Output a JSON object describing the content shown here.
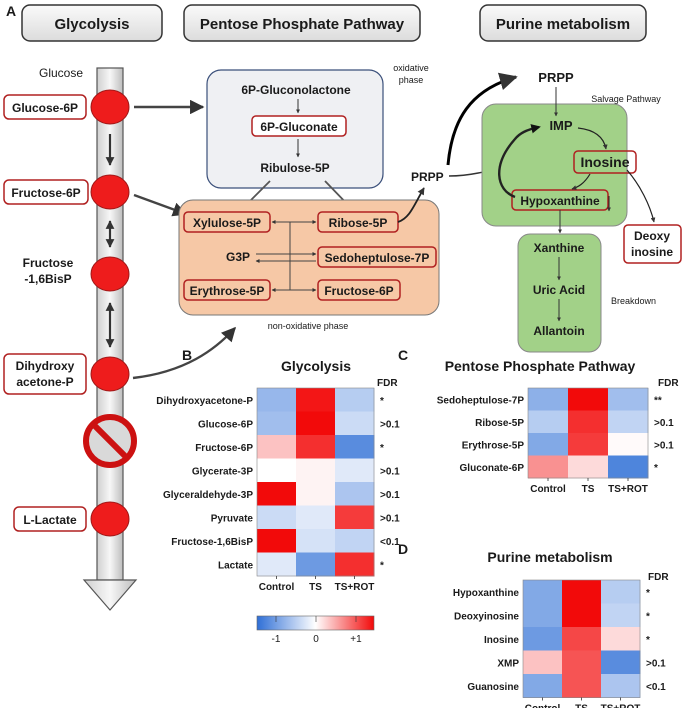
{
  "panel_labels": {
    "a": "A",
    "b": "B",
    "c": "C",
    "d": "D"
  },
  "headers": {
    "glycolysis": "Glycolysis",
    "ppp": "Pentose Phosphate Pathway",
    "purine": "Purine metabolism"
  },
  "pathway": {
    "glucose": "Glucose",
    "glucose6p": "Glucose-6P",
    "fructose6p": "Fructose-6P",
    "fructose16_line1": "Fructose",
    "fructose16_line2": "-1,6BisP",
    "dhap_line1": "Dihydroxy",
    "dhap_line2": "acetone-P",
    "lactate": "L-Lactate"
  },
  "ppp": {
    "oxidative_line1": "oxidative",
    "oxidative_line2": "phase",
    "gluconolactone": "6P-Gluconolactone",
    "gluconate": "6P-Gluconate",
    "ribulose": "Ribulose-5P",
    "xylulose": "Xylulose-5P",
    "ribose": "Ribose-5P",
    "g3p": "G3P",
    "sedoheptulose": "Sedoheptulose-7P",
    "erythrose": "Erythrose-5P",
    "fructose6p": "Fructose-6P",
    "nonoxidative": "non-oxidative phase"
  },
  "purine": {
    "prpp_top": "PRPP",
    "prpp_side": "PRPP",
    "salvage": "Salvage Pathway",
    "imp": "IMP",
    "inosine": "Inosine",
    "hypoxanthine": "Hypoxanthine",
    "deoxy_line1": "Deoxy",
    "deoxy_line2": "inosine",
    "xanthine": "Xanthine",
    "uric_acid": "Uric Acid",
    "allantoin": "Allantoin",
    "breakdown": "Breakdown"
  },
  "colors": {
    "low": "#2f6fd6",
    "mid": "#ffffff",
    "high": "#f20a0a",
    "node_red": "#ee1c1c",
    "node_border": "#b02020",
    "oxidative_box": "#eff0f3",
    "nonoxidative_box": "#f6c8a6",
    "purine_box": "#a2d188"
  },
  "heatmaps": {
    "columns": [
      "Control",
      "TS",
      "TS+ROT"
    ],
    "fdr_header": "FDR",
    "glycolysis": {
      "title": "Glycolysis",
      "rows": [
        {
          "name": "Dihydroxyacetone-P",
          "values": [
            -0.5,
            0.95,
            -0.35
          ],
          "fdr": "*"
        },
        {
          "name": "Glucose-6P",
          "values": [
            -0.45,
            1.0,
            -0.25
          ],
          "fdr": ">0.1"
        },
        {
          "name": "Fructose-6P",
          "values": [
            0.25,
            0.85,
            -0.8
          ],
          "fdr": "*"
        },
        {
          "name": "Glycerate-3P",
          "values": [
            0.0,
            0.05,
            -0.15
          ],
          "fdr": ">0.1"
        },
        {
          "name": "Glyceraldehyde-3P",
          "values": [
            1.0,
            0.05,
            -0.4
          ],
          "fdr": ">0.1"
        },
        {
          "name": "Pyruvate",
          "values": [
            -0.25,
            -0.15,
            0.8
          ],
          "fdr": ">0.1"
        },
        {
          "name": "Fructose-1,6BisP",
          "values": [
            1.0,
            -0.2,
            -0.3
          ],
          "fdr": "<0.1"
        },
        {
          "name": "Lactate",
          "values": [
            -0.15,
            -0.7,
            0.85
          ],
          "fdr": "*"
        }
      ],
      "colorbar": {
        "ticks": [
          "-1",
          "0",
          "+1"
        ]
      }
    },
    "ppp": {
      "title": "Pentose Phosphate Pathway",
      "rows": [
        {
          "name": "Sedoheptulose-7P",
          "values": [
            -0.55,
            1.0,
            -0.45
          ],
          "fdr": "**"
        },
        {
          "name": "Ribose-5P",
          "values": [
            -0.35,
            0.85,
            -0.3
          ],
          "fdr": ">0.1"
        },
        {
          "name": "Erythrose-5P",
          "values": [
            -0.6,
            0.8,
            0.02
          ],
          "fdr": ">0.1"
        },
        {
          "name": "Gluconate-6P",
          "values": [
            0.45,
            0.15,
            -0.85
          ],
          "fdr": "*"
        }
      ]
    },
    "purine": {
      "title": "Purine metabolism",
      "rows": [
        {
          "name": "Hypoxanthine",
          "values": [
            -0.6,
            1.0,
            -0.35
          ],
          "fdr": "*"
        },
        {
          "name": "Deoxyinosine",
          "values": [
            -0.6,
            1.0,
            -0.3
          ],
          "fdr": "*"
        },
        {
          "name": "Inosine",
          "values": [
            -0.7,
            0.75,
            0.15
          ],
          "fdr": "*"
        },
        {
          "name": "XMP",
          "values": [
            0.25,
            0.7,
            -0.8
          ],
          "fdr": ">0.1"
        },
        {
          "name": "Guanosine",
          "values": [
            -0.6,
            0.7,
            -0.4
          ],
          "fdr": "<0.1"
        }
      ]
    }
  }
}
